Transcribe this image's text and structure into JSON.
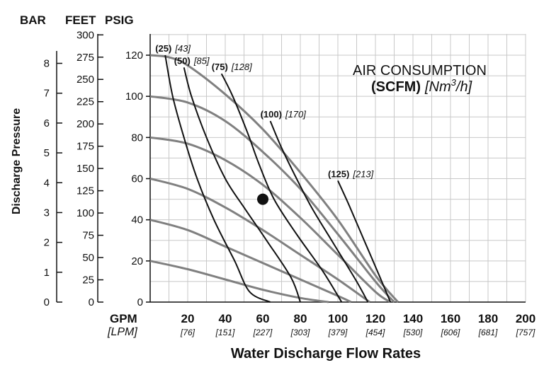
{
  "chart_data": {
    "type": "line",
    "axis_headers": {
      "bar": "BAR",
      "feet": "FEET",
      "psig": "PSIG"
    },
    "xlabel": "Water Discharge Flow Rates",
    "ylabel": "Discharge Pressure",
    "x_unit_primary": "GPM",
    "x_unit_secondary": "[LPM]",
    "x_ticks_gpm": [
      "20",
      "40",
      "60",
      "80",
      "100",
      "120",
      "140",
      "160",
      "180",
      "200"
    ],
    "x_ticks_lpm": [
      "[76]",
      "[151]",
      "[227]",
      "[303]",
      "[379]",
      "[454]",
      "[530]",
      "[606]",
      "[681]",
      "[757]"
    ],
    "y_ticks_psig": [
      "0",
      "20",
      "40",
      "60",
      "80",
      "100",
      "120"
    ],
    "y_ticks_feet": [
      "0",
      "25",
      "50",
      "75",
      "100",
      "125",
      "150",
      "175",
      "200",
      "225",
      "250",
      "275",
      "300"
    ],
    "y_ticks_bar": [
      "0",
      "1",
      "2",
      "3",
      "4",
      "5",
      "6",
      "7",
      "8"
    ],
    "xlim": [
      0,
      200
    ],
    "ylim": [
      0,
      130
    ],
    "annotation": {
      "line1": "AIR CONSUMPTION",
      "bold": "(SCFM)",
      "italic_pre": "[Nm",
      "sup": "3",
      "italic_post": "/h]"
    },
    "operating_point": {
      "x": 60,
      "y": 50
    },
    "performance_curves": [
      {
        "points": [
          [
            0,
            120
          ],
          [
            10,
            119
          ],
          [
            20,
            115
          ],
          [
            40,
            101
          ],
          [
            60,
            84
          ],
          [
            80,
            63
          ],
          [
            100,
            40
          ],
          [
            120,
            13
          ],
          [
            132,
            0
          ]
        ]
      },
      {
        "points": [
          [
            0,
            100
          ],
          [
            20,
            97
          ],
          [
            40,
            88
          ],
          [
            60,
            73
          ],
          [
            80,
            55
          ],
          [
            100,
            33
          ],
          [
            120,
            10
          ],
          [
            130,
            0
          ]
        ]
      },
      {
        "points": [
          [
            0,
            80
          ],
          [
            20,
            77
          ],
          [
            40,
            69
          ],
          [
            60,
            57
          ],
          [
            80,
            41
          ],
          [
            100,
            23
          ],
          [
            120,
            5
          ],
          [
            128,
            0
          ]
        ]
      },
      {
        "points": [
          [
            0,
            60
          ],
          [
            20,
            55
          ],
          [
            40,
            46
          ],
          [
            60,
            35
          ],
          [
            80,
            23
          ],
          [
            100,
            11
          ],
          [
            117,
            0
          ]
        ]
      },
      {
        "points": [
          [
            0,
            40
          ],
          [
            20,
            35
          ],
          [
            40,
            27
          ],
          [
            60,
            19
          ],
          [
            80,
            11
          ],
          [
            100,
            3
          ],
          [
            107,
            0
          ]
        ]
      },
      {
        "points": [
          [
            0,
            20
          ],
          [
            20,
            16
          ],
          [
            40,
            11
          ],
          [
            60,
            6
          ],
          [
            80,
            2
          ],
          [
            95,
            0
          ]
        ]
      }
    ],
    "air_curves": [
      {
        "label_bold": "(25)",
        "label_italic": "[43]",
        "points": [
          [
            8,
            120
          ],
          [
            12,
            100
          ],
          [
            18,
            80
          ],
          [
            25,
            60
          ],
          [
            34,
            40
          ],
          [
            45,
            20
          ],
          [
            53,
            5
          ],
          [
            64,
            0
          ]
        ]
      },
      {
        "label_bold": "(50)",
        "label_italic": "[85]",
        "points": [
          [
            18,
            114
          ],
          [
            22,
            100
          ],
          [
            30,
            80
          ],
          [
            40,
            60
          ],
          [
            50,
            46
          ],
          [
            62,
            30
          ],
          [
            75,
            12
          ],
          [
            80,
            0
          ]
        ]
      },
      {
        "label_bold": "(75)",
        "label_italic": "[128]",
        "points": [
          [
            38,
            111
          ],
          [
            44,
            100
          ],
          [
            52,
            82
          ],
          [
            58,
            67
          ],
          [
            66,
            50
          ],
          [
            78,
            33
          ],
          [
            92,
            15
          ],
          [
            102,
            0
          ]
        ]
      },
      {
        "label_bold": "(100)",
        "label_italic": "[170]",
        "points": [
          [
            64,
            88
          ],
          [
            70,
            75
          ],
          [
            78,
            60
          ],
          [
            86,
            46
          ],
          [
            98,
            28
          ],
          [
            110,
            10
          ],
          [
            116,
            0
          ]
        ]
      },
      {
        "label_bold": "(125)",
        "label_italic": "[213]",
        "points": [
          [
            100,
            59
          ],
          [
            106,
            47
          ],
          [
            114,
            30
          ],
          [
            122,
            13
          ],
          [
            128,
            0
          ]
        ]
      }
    ]
  }
}
